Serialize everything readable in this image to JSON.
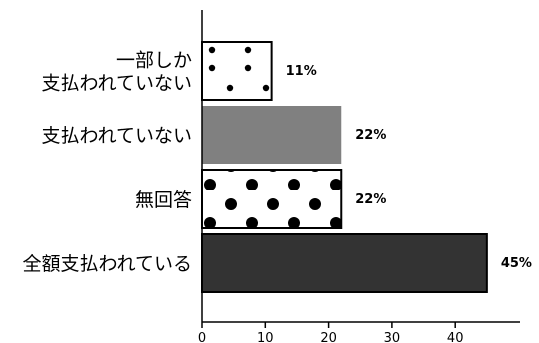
{
  "chart_data": {
    "type": "bar",
    "orientation": "horizontal",
    "categories": [
      [
        "一部しか",
        "支払われていない"
      ],
      [
        "支払われていない"
      ],
      [
        "無回答"
      ],
      [
        "全額支払われている"
      ]
    ],
    "values": [
      11,
      22,
      22,
      45
    ],
    "value_labels": [
      "11%",
      "22%",
      "22%",
      "45%"
    ],
    "fills": [
      "sparse-dots",
      "#808080",
      "dense-dots",
      "#333333"
    ],
    "xlim": [
      0,
      50
    ],
    "xticks": [
      0,
      10,
      20,
      30,
      40
    ],
    "xtick_labels": [
      "0",
      "10",
      "20",
      "30",
      "40"
    ],
    "grid": false,
    "title": "",
    "xlabel": "",
    "ylabel": ""
  }
}
